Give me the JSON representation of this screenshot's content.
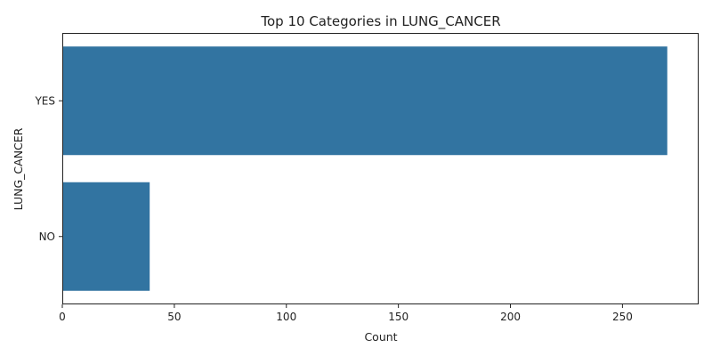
{
  "chart_data": {
    "type": "bar",
    "orientation": "horizontal",
    "title": "Top 10 Categories in LUNG_CANCER",
    "xlabel": "Count",
    "ylabel": "LUNG_CANCER",
    "categories": [
      "YES",
      "NO"
    ],
    "values": [
      270,
      39
    ],
    "xlim": [
      0,
      284
    ],
    "xticks": [
      0,
      50,
      100,
      150,
      200,
      250
    ],
    "bar_color": "#3274a1",
    "grid": false,
    "legend": "none"
  }
}
